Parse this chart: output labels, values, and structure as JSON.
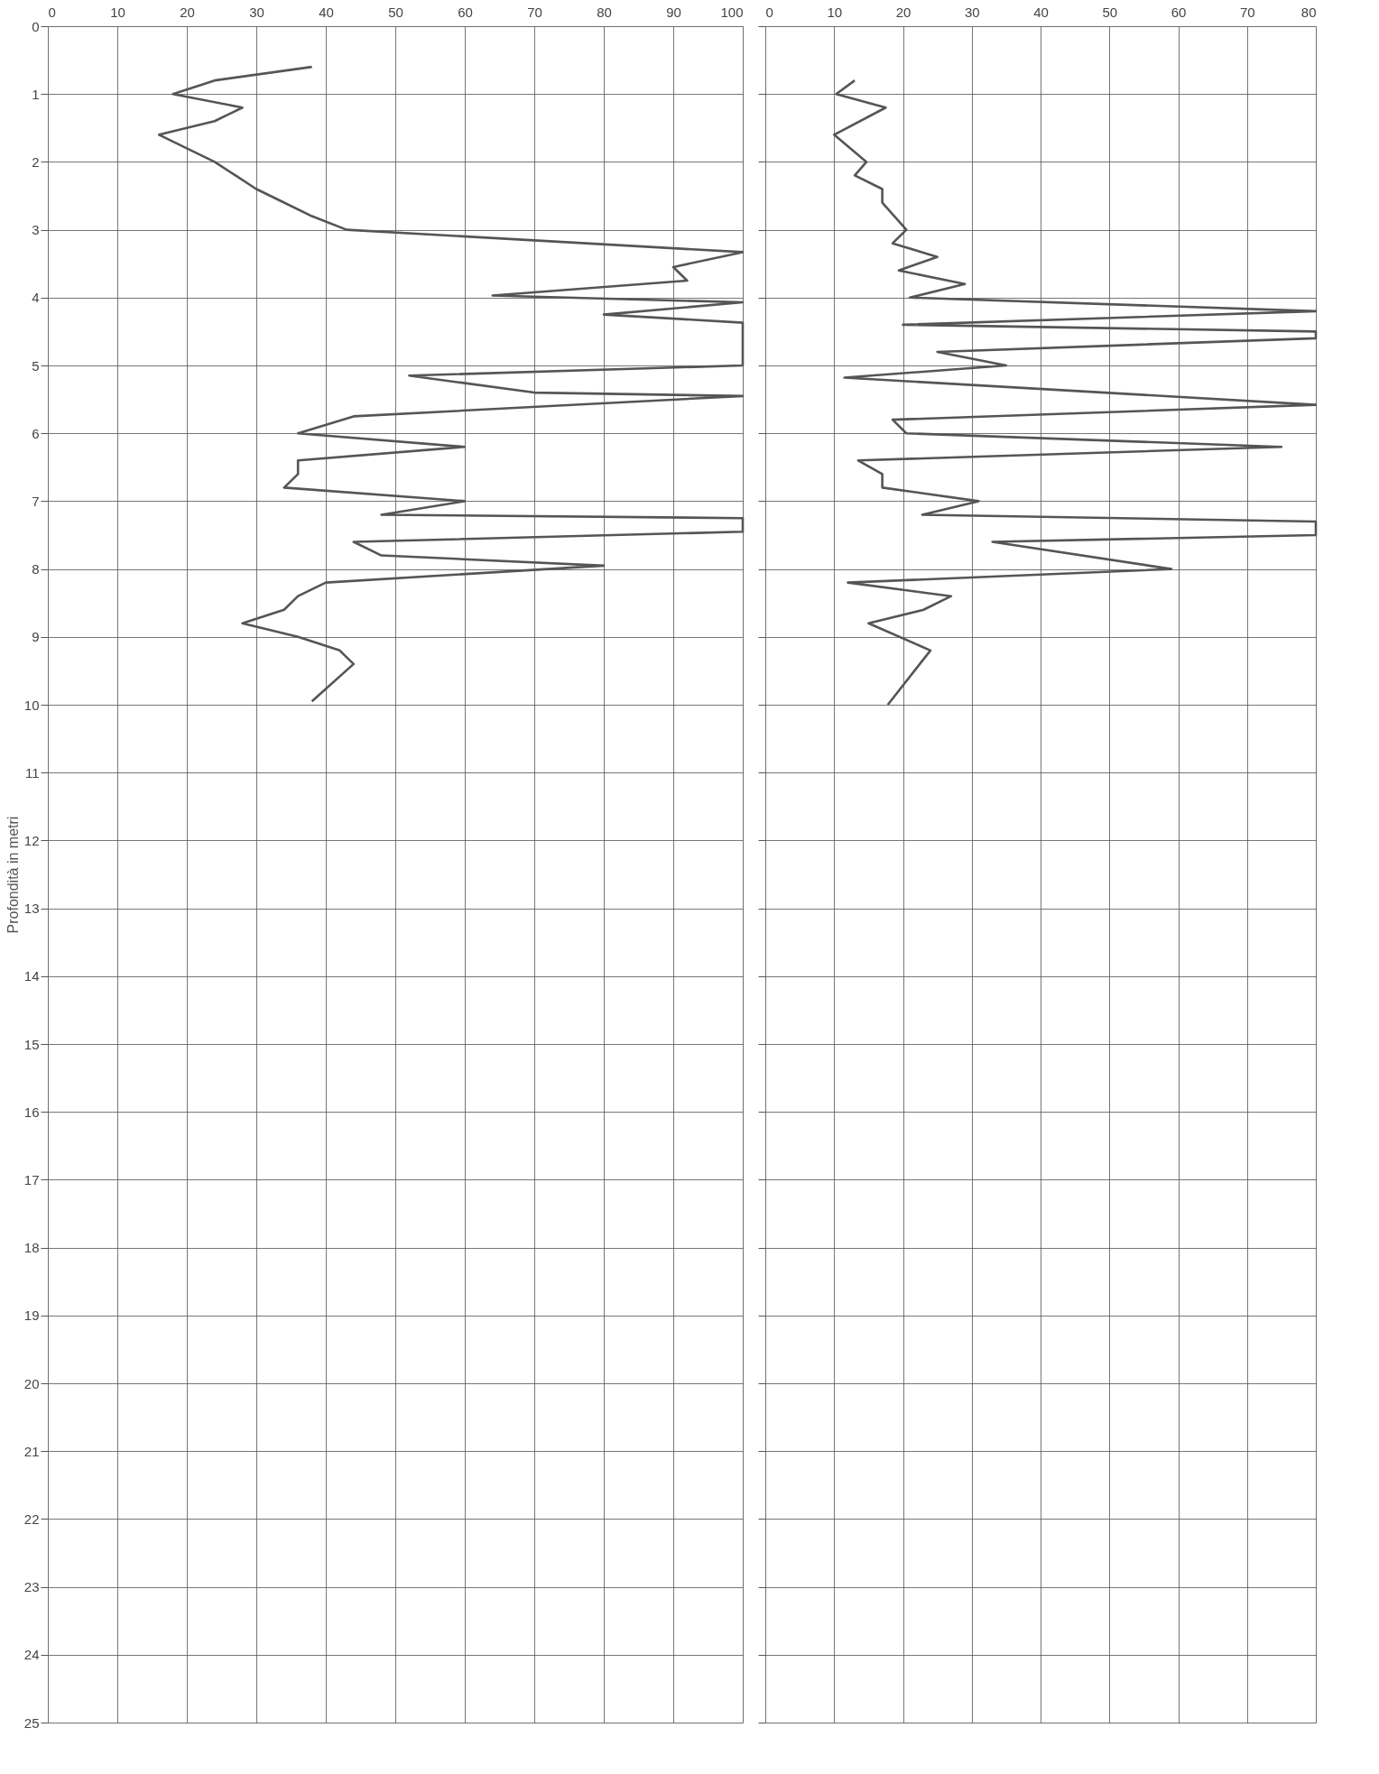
{
  "chart_data": [
    {
      "type": "line",
      "orientation": "horizontal",
      "ylabel": "Profondità in metri",
      "xlim": [
        0,
        100
      ],
      "xticks": [
        0,
        10,
        20,
        30,
        40,
        50,
        60,
        70,
        80,
        90,
        100
      ],
      "ylim": [
        25,
        0
      ],
      "yticks": [
        0,
        1,
        2,
        3,
        4,
        5,
        6,
        7,
        8,
        9,
        10,
        11,
        12,
        13,
        14,
        15,
        16,
        17,
        18,
        19,
        20,
        21,
        22,
        23,
        24,
        25
      ],
      "grid": true,
      "line_style": "solid",
      "marker": "none",
      "series": [
        {
          "color": "#555555",
          "x": [
            0.6,
            0.8,
            1.0,
            1.2,
            1.4,
            1.6,
            1.8,
            2.0,
            2.2,
            2.4,
            2.6,
            2.8,
            3.0,
            3.33,
            3.55,
            3.75,
            3.97,
            4.07,
            4.25,
            4.37,
            4.41,
            4.75,
            5.0,
            5.15,
            5.4,
            5.45,
            5.75,
            6.0,
            6.2,
            6.4,
            6.6,
            6.8,
            7.0,
            7.2,
            7.25,
            7.45,
            7.6,
            7.8,
            7.95,
            8.2,
            8.4,
            8.6,
            8.8,
            9.0,
            9.2,
            9.4,
            9.95
          ],
          "values": [
            38,
            24,
            18,
            28,
            24,
            16,
            20,
            24,
            27,
            30,
            34,
            38,
            43,
            100,
            90,
            92,
            64,
            100,
            80,
            100,
            100,
            100,
            100,
            52,
            70,
            100,
            44,
            36,
            60,
            36,
            36,
            34,
            60,
            48,
            100,
            100,
            44,
            48,
            80,
            40,
            36,
            34,
            28,
            36,
            42,
            44,
            38
          ]
        }
      ]
    },
    {
      "type": "line",
      "orientation": "horizontal",
      "xlim": [
        0,
        80
      ],
      "xticks": [
        0,
        10,
        20,
        30,
        40,
        50,
        60,
        70,
        80
      ],
      "ylim": [
        25,
        0
      ],
      "yticks": [
        0,
        1,
        2,
        3,
        4,
        5,
        6,
        7,
        8,
        9,
        10,
        11,
        12,
        13,
        14,
        15,
        16,
        17,
        18,
        19,
        20,
        21,
        22,
        23,
        24,
        25
      ],
      "tick_labels": "x",
      "grid": true,
      "line_style": "solid",
      "marker": "none",
      "series": [
        {
          "color": "#555555",
          "x": [
            0.8,
            1.0,
            1.2,
            1.6,
            2.0,
            2.2,
            2.4,
            2.6,
            3.0,
            3.2,
            3.4,
            3.6,
            3.8,
            4.0,
            4.2,
            4.4,
            4.5,
            4.6,
            4.8,
            5.0,
            5.18,
            5.58,
            5.8,
            6.0,
            6.2,
            6.4,
            6.6,
            6.8,
            7.0,
            7.2,
            7.3,
            7.5,
            7.6,
            8.0,
            8.2,
            8.4,
            8.6,
            8.8,
            9.2,
            10.0
          ],
          "values": [
            13,
            10.3,
            17.5,
            10,
            14.7,
            13,
            17,
            17,
            20.5,
            18.5,
            25,
            19.4,
            29,
            21,
            80,
            20,
            80,
            80,
            25,
            35,
            11.5,
            80,
            18.5,
            20.5,
            75,
            13.5,
            17,
            17,
            31,
            22.8,
            80,
            80,
            33,
            59,
            12,
            27,
            23,
            15,
            24,
            17.8
          ]
        }
      ]
    }
  ]
}
